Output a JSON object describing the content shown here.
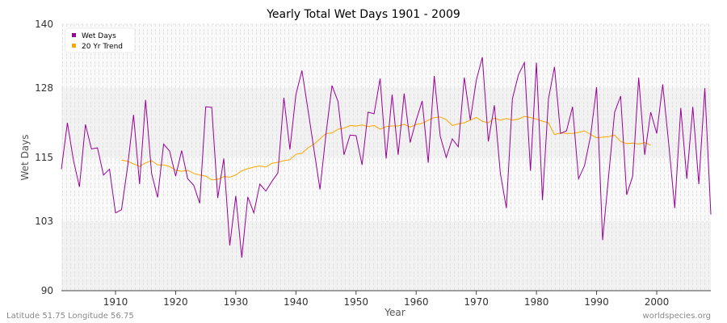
{
  "footer": {
    "location": "Latitude 51.75 Longitude 56.75",
    "source": "worldspecies.org"
  },
  "chart_data": {
    "type": "line",
    "title": "Yearly Total Wet Days 1901 - 2009",
    "xlabel": "Year",
    "ylabel": "Wet Days",
    "xlim": [
      1901,
      2009
    ],
    "ylim": [
      90,
      140
    ],
    "y_ticks": [
      90,
      103,
      115,
      128,
      140
    ],
    "x_ticks": [
      1910,
      1920,
      1930,
      1940,
      1950,
      1960,
      1970,
      1980,
      1990,
      2000
    ],
    "grid": true,
    "legend_position": "top-left",
    "series": [
      {
        "name": "Wet Days",
        "color": "#990099",
        "x": [
          1901,
          1902,
          1903,
          1904,
          1905,
          1906,
          1907,
          1908,
          1909,
          1910,
          1911,
          1912,
          1913,
          1914,
          1915,
          1916,
          1917,
          1918,
          1919,
          1920,
          1921,
          1922,
          1923,
          1924,
          1925,
          1926,
          1927,
          1928,
          1929,
          1930,
          1931,
          1932,
          1933,
          1934,
          1935,
          1936,
          1937,
          1938,
          1939,
          1940,
          1941,
          1942,
          1943,
          1944,
          1945,
          1946,
          1947,
          1948,
          1949,
          1950,
          1951,
          1952,
          1953,
          1954,
          1955,
          1956,
          1957,
          1958,
          1959,
          1960,
          1961,
          1962,
          1963,
          1964,
          1965,
          1966,
          1967,
          1968,
          1969,
          1970,
          1971,
          1972,
          1973,
          1974,
          1975,
          1976,
          1977,
          1978,
          1979,
          1980,
          1981,
          1982,
          1983,
          1984,
          1985,
          1986,
          1987,
          1988,
          1989,
          1990,
          1991,
          1992,
          1993,
          1994,
          1995,
          1996,
          1997,
          1998,
          1999,
          2000,
          2001,
          2002,
          2003,
          2004,
          2005,
          2006,
          2007,
          2008,
          2009
        ],
        "values": [
          112.8,
          121.5,
          114.5,
          109.5,
          121.2,
          116.6,
          116.8,
          111.7,
          112.8,
          104.6,
          105.2,
          113.2,
          123.0,
          110.0,
          125.8,
          112.0,
          107.5,
          117.5,
          116.2,
          111.5,
          116.3,
          111.0,
          109.8,
          106.4,
          124.5,
          124.4,
          107.4,
          114.8,
          98.5,
          107.8,
          96.2,
          107.6,
          104.6,
          110.0,
          108.7,
          110.5,
          112.1,
          126.2,
          116.5,
          126.8,
          131.3,
          124.0,
          116.5,
          109.0,
          119.4,
          128.5,
          125.5,
          115.5,
          119.2,
          119.1,
          113.6,
          123.5,
          123.2,
          129.8,
          114.8,
          126.8,
          115.5,
          127.0,
          117.8,
          122.0,
          125.6,
          114.0,
          130.3,
          119.0,
          115.0,
          118.5,
          117.0,
          130.0,
          122.0,
          129.5,
          133.8,
          118.0,
          124.8,
          112.0,
          105.5,
          126.0,
          130.5,
          132.8,
          112.5,
          132.8,
          107.0,
          126.0,
          132.0,
          119.5,
          120.0,
          124.5,
          111.0,
          113.5,
          119.0,
          128.2,
          99.5,
          111.5,
          123.5,
          126.5,
          108.0,
          111.5,
          130.0,
          115.5,
          123.5,
          119.5,
          128.7,
          117.5,
          105.5,
          124.3,
          111.0,
          124.5,
          110.0,
          128.0,
          104.3
        ]
      },
      {
        "name": "20 Yr Trend",
        "color": "#ffa500",
        "x": [
          1911,
          1912,
          1913,
          1914,
          1915,
          1916,
          1917,
          1918,
          1919,
          1920,
          1921,
          1922,
          1923,
          1924,
          1925,
          1926,
          1927,
          1928,
          1929,
          1930,
          1931,
          1932,
          1933,
          1934,
          1935,
          1936,
          1937,
          1938,
          1939,
          1940,
          1941,
          1942,
          1943,
          1944,
          1945,
          1946,
          1947,
          1948,
          1949,
          1950,
          1951,
          1952,
          1953,
          1954,
          1955,
          1956,
          1957,
          1958,
          1959,
          1960,
          1961,
          1962,
          1963,
          1964,
          1965,
          1966,
          1967,
          1968,
          1969,
          1970,
          1971,
          1972,
          1973,
          1974,
          1975,
          1976,
          1977,
          1978,
          1979,
          1980,
          1981,
          1982,
          1983,
          1984,
          1985,
          1986,
          1987,
          1988,
          1989,
          1990,
          1991,
          1992,
          1993,
          1994,
          1995,
          1996,
          1997,
          1998,
          1999
        ],
        "values": [
          114.5,
          114.3,
          113.8,
          113.3,
          114.0,
          114.4,
          113.6,
          113.6,
          113.3,
          112.6,
          112.4,
          112.6,
          112.0,
          111.7,
          111.5,
          110.8,
          110.9,
          111.4,
          111.3,
          111.7,
          112.5,
          112.9,
          113.2,
          113.4,
          113.2,
          113.9,
          114.1,
          114.4,
          114.6,
          115.6,
          115.8,
          116.8,
          117.5,
          118.5,
          119.5,
          119.6,
          120.3,
          120.5,
          121.0,
          120.9,
          121.1,
          120.8,
          121.0,
          120.3,
          120.8,
          120.9,
          120.9,
          121.2,
          120.7,
          121.2,
          121.4,
          122.0,
          122.5,
          122.6,
          122.1,
          121.0,
          121.3,
          121.5,
          122.0,
          122.5,
          121.8,
          121.5,
          122.4,
          122.0,
          122.3,
          122.0,
          122.2,
          122.7,
          122.5,
          122.2,
          121.8,
          121.5,
          119.3,
          119.6,
          119.5,
          119.5,
          119.7,
          120.0,
          119.3,
          118.7,
          118.8,
          118.9,
          119.2,
          118.0,
          117.6,
          117.7,
          117.5,
          117.8,
          117.3
        ]
      }
    ]
  }
}
